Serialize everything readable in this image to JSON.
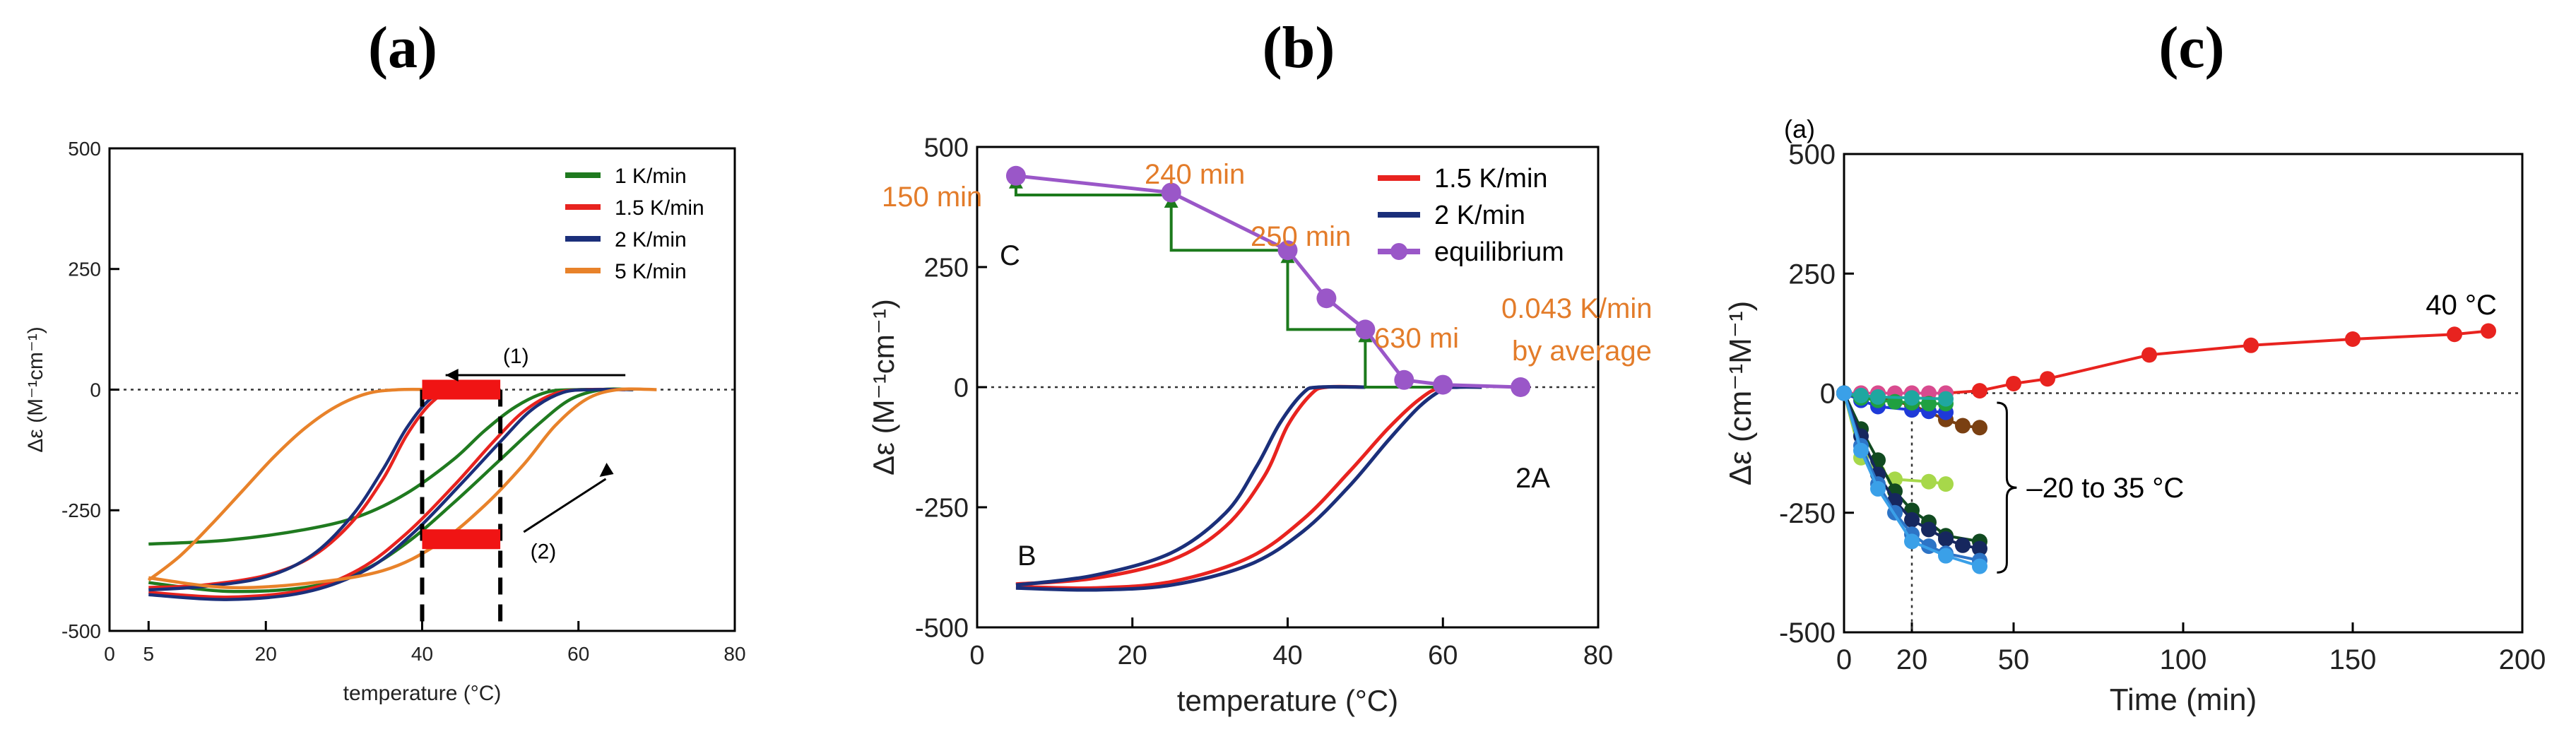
{
  "panel_labels": [
    "(a)",
    "(b)",
    "(c)"
  ],
  "chart_data": [
    {
      "type": "line",
      "panel": "(a)",
      "title": "",
      "xlabel": "temperature (°C)",
      "ylabel": "Δε (M⁻¹cm⁻¹)",
      "xlim": [
        0,
        80
      ],
      "ylim": [
        -500,
        500
      ],
      "xticks": [
        0,
        5,
        20,
        40,
        60,
        80
      ],
      "yticks": [
        -500,
        -250,
        0,
        250,
        500
      ],
      "legend": "top-right",
      "series": [
        {
          "name": "1 K/min",
          "color": "#1f7a1f",
          "cooling": [
            [
              5,
              -320
            ],
            [
              15,
              -312
            ],
            [
              25,
              -290
            ],
            [
              32,
              -262
            ],
            [
              38,
              -215
            ],
            [
              44,
              -145
            ],
            [
              48,
              -85
            ],
            [
              52,
              -35
            ],
            [
              56,
              -5
            ],
            [
              60,
              0
            ],
            [
              65,
              0
            ]
          ],
          "heating": [
            [
              5,
              -400
            ],
            [
              15,
              -418
            ],
            [
              25,
              -410
            ],
            [
              32,
              -378
            ],
            [
              38,
              -318
            ],
            [
              44,
              -235
            ],
            [
              50,
              -145
            ],
            [
              55,
              -70
            ],
            [
              59,
              -20
            ],
            [
              63,
              0
            ],
            [
              67,
              0
            ]
          ]
        },
        {
          "name": "1.5 K/min",
          "color": "#e8231f",
          "cooling": [
            [
              5,
              -410
            ],
            [
              12,
              -405
            ],
            [
              20,
              -385
            ],
            [
              26,
              -345
            ],
            [
              31,
              -275
            ],
            [
              35,
              -185
            ],
            [
              38,
              -95
            ],
            [
              41,
              -30
            ],
            [
              44,
              0
            ],
            [
              48,
              0
            ]
          ],
          "heating": [
            [
              5,
              -420
            ],
            [
              15,
              -430
            ],
            [
              25,
              -415
            ],
            [
              32,
              -372
            ],
            [
              38,
              -298
            ],
            [
              44,
              -200
            ],
            [
              49,
              -110
            ],
            [
              53,
              -45
            ],
            [
              57,
              -8
            ],
            [
              61,
              0
            ],
            [
              66,
              0
            ]
          ]
        },
        {
          "name": "2 K/min",
          "color": "#1b2f7a",
          "cooling": [
            [
              5,
              -415
            ],
            [
              12,
              -408
            ],
            [
              20,
              -388
            ],
            [
              26,
              -342
            ],
            [
              31,
              -262
            ],
            [
              35,
              -165
            ],
            [
              38,
              -80
            ],
            [
              41,
              -20
            ],
            [
              44,
              0
            ],
            [
              48,
              0
            ]
          ],
          "heating": [
            [
              5,
              -425
            ],
            [
              15,
              -435
            ],
            [
              25,
              -420
            ],
            [
              33,
              -372
            ],
            [
              39,
              -295
            ],
            [
              45,
              -195
            ],
            [
              50,
              -108
            ],
            [
              54,
              -42
            ],
            [
              58,
              -6
            ],
            [
              62,
              0
            ],
            [
              67,
              0
            ]
          ]
        },
        {
          "name": "5 K/min",
          "color": "#e8822a",
          "cooling": [
            [
              5,
              -395
            ],
            [
              9,
              -345
            ],
            [
              13,
              -280
            ],
            [
              17,
              -210
            ],
            [
              21,
              -140
            ],
            [
              25,
              -80
            ],
            [
              29,
              -35
            ],
            [
              33,
              -8
            ],
            [
              37,
              0
            ],
            [
              42,
              0
            ]
          ],
          "heating": [
            [
              5,
              -390
            ],
            [
              15,
              -410
            ],
            [
              25,
              -402
            ],
            [
              35,
              -375
            ],
            [
              42,
              -320
            ],
            [
              48,
              -240
            ],
            [
              53,
              -155
            ],
            [
              57,
              -75
            ],
            [
              61,
              -20
            ],
            [
              65,
              0
            ],
            [
              70,
              0
            ]
          ]
        }
      ],
      "annotations": [
        "(1)",
        "(2)"
      ],
      "markers": {
        "x_lines": [
          40,
          50
        ],
        "red_bars": [
          [
            40,
            50,
            0
          ],
          [
            40,
            50,
            -310
          ]
        ]
      }
    },
    {
      "type": "line",
      "panel": "(b)",
      "title": "",
      "xlabel": "temperature (°C)",
      "ylabel": "Δε (M⁻¹cm⁻¹)",
      "xlim": [
        0,
        80
      ],
      "ylim": [
        -500,
        500
      ],
      "xticks": [
        0,
        20,
        40,
        60,
        80
      ],
      "yticks": [
        -500,
        -250,
        0,
        250,
        500
      ],
      "legend": "top-right",
      "series": [
        {
          "name": "1.5 K/min",
          "color": "#e8231f",
          "cooling": [
            [
              5,
              -410
            ],
            [
              15,
              -398
            ],
            [
              25,
              -360
            ],
            [
              32,
              -290
            ],
            [
              37,
              -185
            ],
            [
              40,
              -80
            ],
            [
              43,
              -15
            ],
            [
              45,
              0
            ],
            [
              50,
              0
            ]
          ],
          "heating": [
            [
              5,
              -415
            ],
            [
              15,
              -418
            ],
            [
              25,
              -405
            ],
            [
              35,
              -355
            ],
            [
              42,
              -275
            ],
            [
              48,
              -175
            ],
            [
              53,
              -85
            ],
            [
              57,
              -25
            ],
            [
              60,
              0
            ],
            [
              65,
              0
            ]
          ]
        },
        {
          "name": "2 K/min",
          "color": "#1b2f7a",
          "cooling": [
            [
              5,
              -412
            ],
            [
              15,
              -392
            ],
            [
              25,
              -345
            ],
            [
              32,
              -262
            ],
            [
              36,
              -165
            ],
            [
              39,
              -75
            ],
            [
              42,
              -12
            ],
            [
              44,
              0
            ],
            [
              50,
              0
            ]
          ],
          "heating": [
            [
              5,
              -418
            ],
            [
              15,
              -422
            ],
            [
              25,
              -412
            ],
            [
              35,
              -370
            ],
            [
              42,
              -300
            ],
            [
              48,
              -205
            ],
            [
              53,
              -110
            ],
            [
              57,
              -40
            ],
            [
              60,
              -5
            ],
            [
              62,
              0
            ],
            [
              65,
              0
            ]
          ]
        },
        {
          "name": "equilibrium",
          "color": "#9a57c8",
          "points": [
            [
              5,
              440
            ],
            [
              25,
              405
            ],
            [
              40,
              285
            ],
            [
              45,
              185
            ],
            [
              50,
              120
            ],
            [
              55,
              15
            ],
            [
              60,
              5
            ],
            [
              70,
              0
            ]
          ]
        }
      ],
      "annotations": [
        "150 min",
        "240 min",
        "250 min",
        "630 mi",
        "0.043 K/min",
        "by average",
        "C",
        "B",
        "2A"
      ]
    },
    {
      "type": "scatter",
      "panel": "(c)",
      "title": "",
      "corner_label": "(a)",
      "xlabel": "Time (min)",
      "ylabel": "Δε (cm⁻¹M⁻¹)",
      "xlim": [
        0,
        200
      ],
      "ylim": [
        -500,
        500
      ],
      "xticks": [
        0,
        20,
        50,
        100,
        150,
        200
      ],
      "yticks": [
        -500,
        -250,
        0,
        250,
        500
      ],
      "series": [
        {
          "name": "40 °C",
          "color": "#e8231f",
          "points": [
            [
              0,
              0
            ],
            [
              5,
              0
            ],
            [
              10,
              0
            ],
            [
              20,
              0
            ],
            [
              30,
              0
            ],
            [
              40,
              5
            ],
            [
              50,
              20
            ],
            [
              60,
              30
            ],
            [
              90,
              80
            ],
            [
              120,
              100
            ],
            [
              150,
              113
            ],
            [
              180,
              123
            ],
            [
              190,
              130
            ]
          ]
        },
        {
          "name": "brown",
          "color": "#7a4012",
          "points": [
            [
              0,
              0
            ],
            [
              10,
              -10
            ],
            [
              20,
              -25
            ],
            [
              30,
              -55
            ],
            [
              35,
              -68
            ],
            [
              40,
              -72
            ]
          ]
        },
        {
          "name": "pink",
          "color": "#d84b8f",
          "points": [
            [
              0,
              0
            ],
            [
              5,
              0
            ],
            [
              10,
              0
            ],
            [
              15,
              0
            ],
            [
              20,
              0
            ],
            [
              25,
              0
            ],
            [
              30,
              0
            ]
          ]
        },
        {
          "name": "blue",
          "color": "#1e3ad8",
          "points": [
            [
              0,
              0
            ],
            [
              5,
              -15
            ],
            [
              10,
              -28
            ],
            [
              20,
              -35
            ],
            [
              25,
              -38
            ],
            [
              30,
              -40
            ]
          ]
        },
        {
          "name": "green",
          "color": "#20a040",
          "points": [
            [
              0,
              0
            ],
            [
              5,
              -10
            ],
            [
              10,
              -15
            ],
            [
              15,
              -18
            ],
            [
              20,
              -20
            ],
            [
              25,
              -22
            ],
            [
              30,
              -22
            ]
          ]
        },
        {
          "name": "teal",
          "color": "#1fa7a0",
          "points": [
            [
              0,
              0
            ],
            [
              5,
              -5
            ],
            [
              10,
              -8
            ],
            [
              20,
              -10
            ],
            [
              30,
              -12
            ]
          ]
        },
        {
          "name": "light green",
          "color": "#a7d84a",
          "points": [
            [
              0,
              0
            ],
            [
              5,
              -135
            ],
            [
              10,
              -165
            ],
            [
              15,
              -180
            ],
            [
              25,
              -185
            ],
            [
              30,
              -190
            ]
          ]
        },
        {
          "name": "dark green",
          "color": "#114a20",
          "points": [
            [
              0,
              0
            ],
            [
              5,
              -75
            ],
            [
              10,
              -140
            ],
            [
              15,
              -205
            ],
            [
              20,
              -245
            ],
            [
              25,
              -270
            ],
            [
              30,
              -298
            ],
            [
              40,
              -310
            ]
          ]
        },
        {
          "name": "navy",
          "color": "#16275e",
          "points": [
            [
              0,
              0
            ],
            [
              5,
              -90
            ],
            [
              10,
              -170
            ],
            [
              15,
              -225
            ],
            [
              20,
              -265
            ],
            [
              25,
              -285
            ],
            [
              30,
              -305
            ],
            [
              35,
              -318
            ],
            [
              40,
              -325
            ]
          ]
        },
        {
          "name": "mid blue",
          "color": "#2d74c6",
          "points": [
            [
              0,
              0
            ],
            [
              5,
              -110
            ],
            [
              10,
              -190
            ],
            [
              15,
              -250
            ],
            [
              20,
              -295
            ],
            [
              25,
              -320
            ],
            [
              30,
              -335
            ],
            [
              40,
              -350
            ]
          ]
        },
        {
          "name": "light blue",
          "color": "#3aa0e8",
          "points": [
            [
              0,
              0
            ],
            [
              5,
              -120
            ],
            [
              10,
              -200
            ],
            [
              20,
              -310
            ],
            [
              30,
              -340
            ],
            [
              40,
              -362
            ]
          ]
        }
      ],
      "annotations": [
        "40 °C",
        "–20 to 35 °C"
      ]
    }
  ]
}
